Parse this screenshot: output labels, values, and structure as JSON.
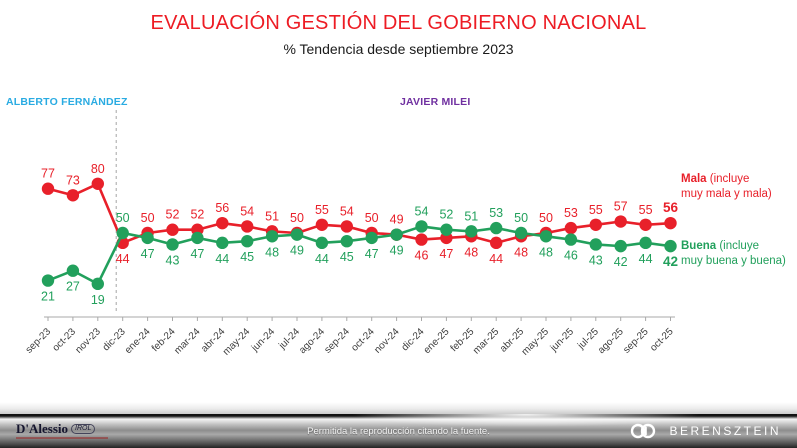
{
  "chart_data": {
    "type": "line",
    "title": "EVALUACIÓN GESTIÓN DEL GOBIERNO NACIONAL",
    "subtitle": "% Tendencia desde septiembre 2023",
    "categories": [
      "sep-23",
      "oct-23",
      "nov-23",
      "dic-23",
      "ene-24",
      "feb-24",
      "mar-24",
      "abr-24",
      "may-24",
      "jun-24",
      "jul-24",
      "ago-24",
      "sep-24",
      "oct-24",
      "nov-24",
      "dic-24",
      "ene-25",
      "feb-25",
      "mar-25",
      "abr-25",
      "may-25",
      "jun-25",
      "jul-25",
      "ago-25",
      "sep-25",
      "oct-25"
    ],
    "series": [
      {
        "name": "Mala",
        "color": "#e8202a",
        "values": [
          77,
          73,
          80,
          44,
          50,
          52,
          52,
          56,
          54,
          51,
          50,
          55,
          54,
          50,
          49,
          46,
          47,
          48,
          44,
          48,
          50,
          53,
          55,
          57,
          55,
          56
        ]
      },
      {
        "name": "Buena",
        "color": "#22a05c",
        "values": [
          21,
          27,
          19,
          50,
          47,
          43,
          47,
          44,
          45,
          48,
          49,
          44,
          45,
          47,
          49,
          54,
          52,
          51,
          53,
          50,
          48,
          46,
          43,
          42,
          44,
          42
        ]
      }
    ],
    "divider_after_category": "nov-23",
    "ylim": [
      0,
      100
    ],
    "grid": false,
    "legend_position": "right",
    "highlight_last_point": true
  },
  "era_labels": {
    "fernandez": {
      "label": "ALBERTO FERNÁNDEZ",
      "color": "#29abe2"
    },
    "milei": {
      "label": "JAVIER MILEI",
      "color": "#7030a0"
    }
  },
  "legend": {
    "mala": {
      "name": "Mala",
      "line1_rest": " (incluye",
      "line2": "muy mala y mala)"
    },
    "buena": {
      "name": "Buena",
      "line1_rest": " (incluye",
      "line2": "muy buena y buena)"
    }
  },
  "footer": {
    "left_logo_main": "D'Alessio",
    "left_logo_suffix": "IROL",
    "center_text": "Permitida la reproducción citando la fuente.",
    "right_logo": "BERENSZTEIN"
  },
  "colors": {
    "title": "#ed1c24",
    "mala": "#e8202a",
    "buena": "#22a05c",
    "axis": "#a9a9a9",
    "divider": "#b5b5b5",
    "month_label": "#3d3d3d"
  }
}
